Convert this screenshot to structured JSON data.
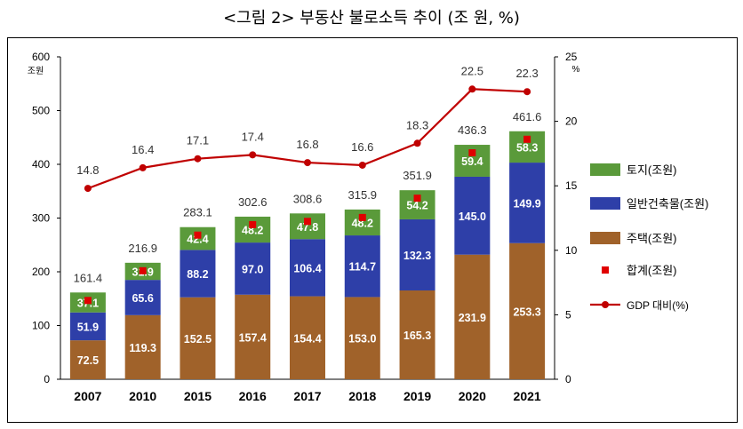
{
  "title": "<그림 2> 부동산 불로소득 추이 (조 원, %)",
  "chart_data": {
    "type": "bar",
    "stacked": true,
    "title": "<그림 2> 부동산 불로소득 추이 (조 원, %)",
    "categories": [
      "2007",
      "2010",
      "2015",
      "2016",
      "2017",
      "2018",
      "2019",
      "2020",
      "2021"
    ],
    "y_left": {
      "unit": "조원",
      "ylim": [
        0,
        600
      ],
      "ticks": [
        "0",
        "100",
        "200",
        "300",
        "400",
        "500",
        "600"
      ]
    },
    "y_right": {
      "unit": "%",
      "ylim": [
        0,
        25
      ],
      "ticks": [
        "0",
        "5",
        "10",
        "15",
        "20",
        "25"
      ]
    },
    "series": [
      {
        "name": "주택(조원)",
        "color": "#A0622A",
        "values": [
          72.5,
          119.3,
          152.5,
          157.4,
          154.4,
          153.0,
          165.3,
          231.9,
          253.3
        ],
        "labels": [
          "72.5",
          "119.3",
          "152.5",
          "157.4",
          "154.4",
          "153.0",
          "165.3",
          "231.9",
          "253.3"
        ]
      },
      {
        "name": "일반건축물(조원)",
        "color": "#2E3FA8",
        "values": [
          51.9,
          65.6,
          88.2,
          97.0,
          106.4,
          114.7,
          132.3,
          145.0,
          149.9
        ],
        "labels": [
          "51.9",
          "65.6",
          "88.2",
          "97.0",
          "106.4",
          "114.7",
          "132.3",
          "145.0",
          "149.9"
        ]
      },
      {
        "name": "토지(조원)",
        "color": "#5A9A3A",
        "values": [
          37.1,
          31.9,
          42.4,
          48.2,
          47.8,
          48.2,
          54.2,
          59.4,
          58.3
        ],
        "labels": [
          "37.1",
          "31.9",
          "42.4",
          "48.2",
          "47.8",
          "48.2",
          "54.2",
          "59.4",
          "58.3"
        ]
      }
    ],
    "totals": {
      "name": "합계(조원)",
      "color": "#E00000",
      "values": [
        161.4,
        216.9,
        283.1,
        302.6,
        308.6,
        315.9,
        351.9,
        436.3,
        461.6
      ],
      "labels": [
        "161.4",
        "216.9",
        "283.1",
        "302.6",
        "308.6",
        "315.9",
        "351.9",
        "436.3",
        "461.6"
      ]
    },
    "line": {
      "name": "GDP 대비(%)",
      "color": "#C00000",
      "axis": "right",
      "values": [
        14.8,
        16.4,
        17.1,
        17.4,
        16.8,
        16.6,
        18.3,
        22.5,
        22.3
      ],
      "labels": [
        "14.8",
        "16.4",
        "17.1",
        "17.4",
        "16.8",
        "16.6",
        "18.3",
        "22.5",
        "22.3"
      ]
    },
    "legend": {
      "position": "right",
      "items": [
        "토지(조원)",
        "일반건축물(조원)",
        "주택(조원)",
        "합계(조원)",
        "GDP 대비(%)"
      ]
    }
  }
}
